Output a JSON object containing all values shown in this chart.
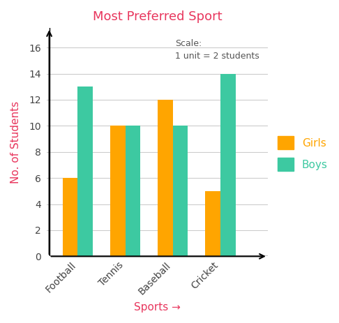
{
  "title": "Most Preferred Sport",
  "title_color": "#e8365d",
  "xlabel": "Sports →",
  "ylabel": "No. of Students",
  "xlabel_color": "#e8365d",
  "ylabel_color": "#e8365d",
  "categories": [
    "Football",
    "Tennis",
    "Baseball",
    "Cricket"
  ],
  "girls_values": [
    6,
    10,
    12,
    5
  ],
  "boys_values": [
    13,
    10,
    10,
    14
  ],
  "girls_color": "#FFA500",
  "boys_color": "#3DC9A1",
  "ylim": [
    0,
    17.5
  ],
  "yticks": [
    0,
    2,
    4,
    6,
    8,
    10,
    12,
    14,
    16
  ],
  "scale_text": "Scale:\n1 unit = 2 students",
  "scale_color": "#555555",
  "bar_width": 0.32,
  "legend_girls_color": "#FFA500",
  "legend_boys_color": "#3DC9A1",
  "legend_girls_label": "Girls",
  "legend_boys_label": "Boys",
  "grid_color": "#cccccc",
  "background_color": "#ffffff",
  "tick_color": "#444444",
  "figsize": [
    4.86,
    4.63
  ],
  "dpi": 100
}
